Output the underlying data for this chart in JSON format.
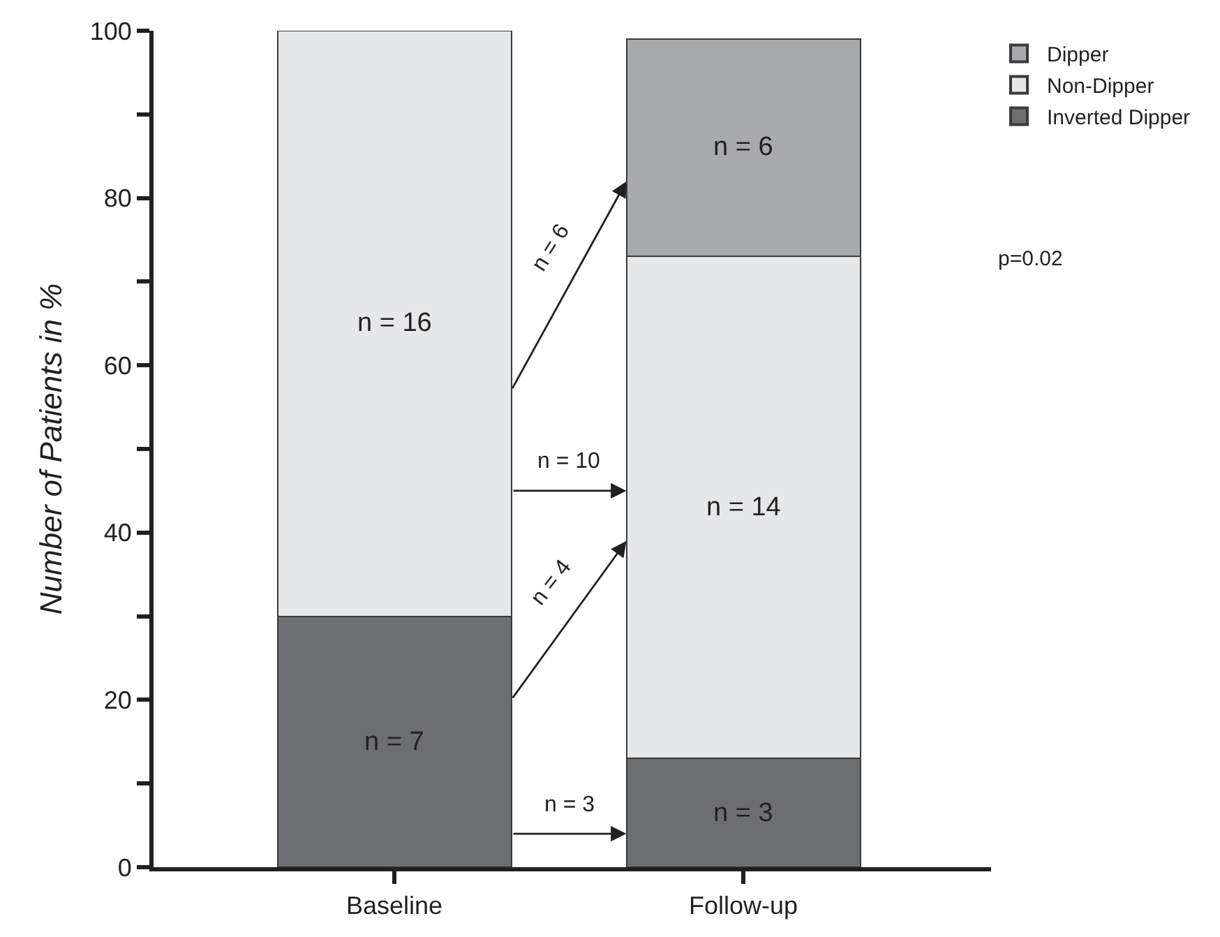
{
  "chart_data": {
    "type": "bar",
    "stacked": true,
    "ylabel": "Number of Patients in %",
    "categories": [
      "Baseline",
      "Follow-up"
    ],
    "series": [
      {
        "name": "Inverted Dipper",
        "color": "#6d6e71",
        "values": [
          30,
          13
        ]
      },
      {
        "name": "Non-Dipper",
        "color": "#e6e7e8",
        "values": [
          70,
          60
        ]
      },
      {
        "name": "Dipper",
        "color": "#a7a9ac",
        "values": [
          null,
          26
        ]
      }
    ],
    "ylim": [
      0,
      100
    ],
    "yticks": [
      0,
      {
        "value": 10,
        "label": null
      },
      20,
      {
        "value": 30,
        "label": null
      },
      40,
      {
        "value": 50,
        "label": null
      },
      60,
      {
        "value": 70,
        "label": null
      },
      80,
      {
        "value": 90,
        "label": null
      },
      100
    ],
    "legend": "top right",
    "annotations": [
      "n = 6",
      "n = 10",
      "n = 4",
      "n = 3",
      "n = 7",
      "n = 3",
      "n = 16",
      "n = 14",
      "n = 6",
      "p=0.02"
    ]
  }
}
